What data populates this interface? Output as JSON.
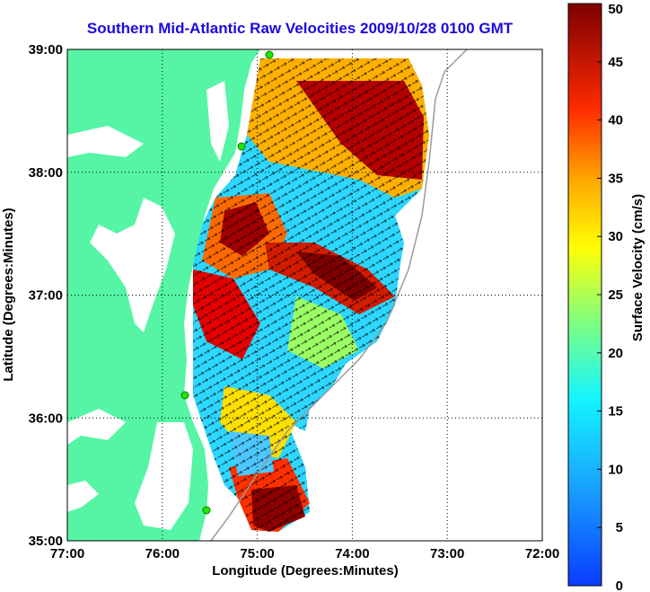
{
  "title": "Southern Mid-Atlantic Raw Velocities 2009/10/28 0100 GMT",
  "map": {
    "xlabel": "Longitude (Degrees:Minutes)",
    "ylabel": "Latitude (Degrees:Minutes)",
    "xticks": [
      "77:00",
      "76:00",
      "75:00",
      "74:00",
      "73:00",
      "72:00"
    ],
    "yticks": [
      "39:00",
      "38:00",
      "37:00",
      "36:00",
      "35:00"
    ],
    "land_color": "#55f5a5",
    "grid": "dotted"
  },
  "colorbar": {
    "label": "Surface Velocity (cm/s)",
    "ticks": [
      "50",
      "45",
      "40",
      "35",
      "30",
      "25",
      "20",
      "15",
      "10",
      "5",
      "0"
    ],
    "range": [
      0,
      50
    ],
    "colormap": "jet"
  }
}
